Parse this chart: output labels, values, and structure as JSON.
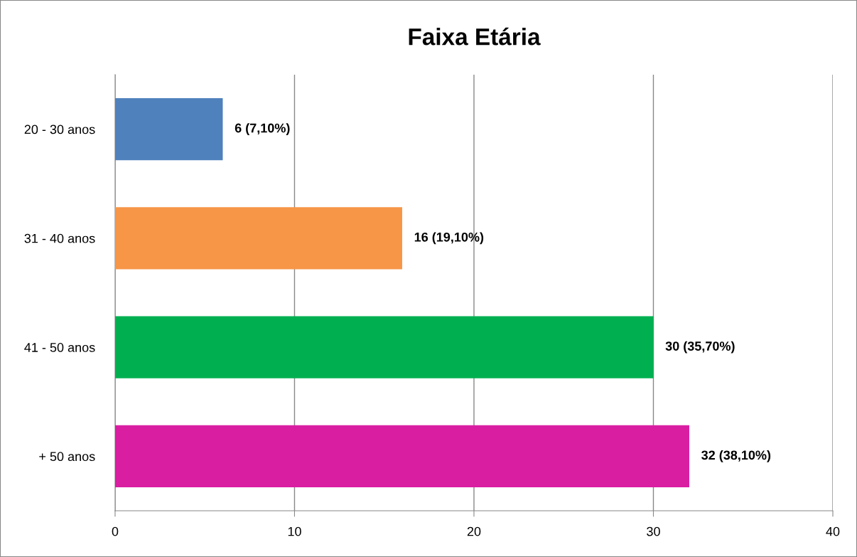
{
  "chart_data": {
    "type": "bar",
    "orientation": "horizontal",
    "title": "Faixa Etária",
    "categories": [
      "20 - 30 anos",
      "31 - 40 anos",
      "41 - 50 anos",
      "+ 50 anos"
    ],
    "values": [
      6,
      16,
      30,
      32
    ],
    "colors": [
      "#4f81bd",
      "#f79646",
      "#00b050",
      "#d91ea2"
    ],
    "value_labels": [
      "6 (7,10%)",
      "16 (19,10%)",
      "30 (35,70%)",
      "32 (38,10%)"
    ],
    "xlim": [
      0,
      40
    ],
    "xticks": [
      0,
      10,
      20,
      30,
      40
    ],
    "grid": "x",
    "legend": false
  }
}
